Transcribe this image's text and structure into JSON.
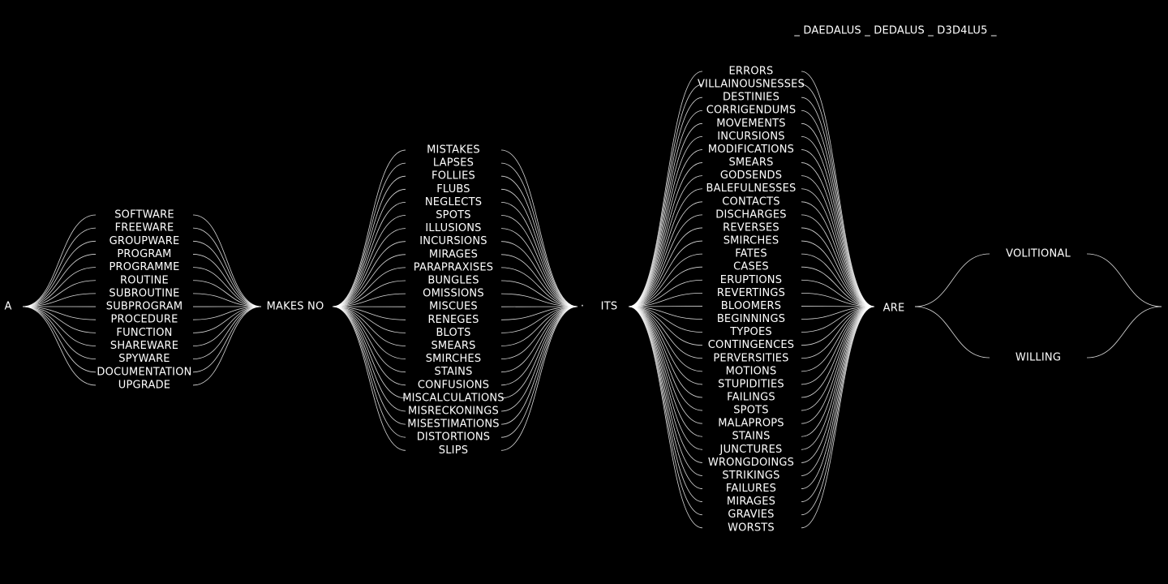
{
  "title": "_ DAEDALUS _ DEDALUS _ D3D4LU5 _",
  "words": {
    "a": "A",
    "makes_no": "MAKES NO",
    "dot": "·",
    "its": "ITS",
    "are": "ARE"
  },
  "groups": {
    "software": [
      "SOFTWARE",
      "FREEWARE",
      "GROUPWARE",
      "PROGRAM",
      "PROGRAMME",
      "ROUTINE",
      "SUBROUTINE",
      "SUBPROGRAM",
      "PROCEDURE",
      "FUNCTION",
      "SHAREWARE",
      "SPYWARE",
      "DOCUMENTATION",
      "UPGRADE"
    ],
    "mistakes": [
      "MISTAKES",
      "LAPSES",
      "FOLLIES",
      "FLUBS",
      "NEGLECTS",
      "SPOTS",
      "ILLUSIONS",
      "INCURSIONS",
      "MIRAGES",
      "PARAPRAXISES",
      "BUNGLES",
      "OMISSIONS",
      "MISCUES",
      "RENEGES",
      "BLOTS",
      "SMEARS",
      "SMIRCHES",
      "STAINS",
      "CONFUSIONS",
      "MISCALCULATIONS",
      "MISRECKONINGS",
      "MISESTIMATIONS",
      "DISTORTIONS",
      "SLIPS"
    ],
    "errors": [
      "ERRORS",
      "VILLAINOUSNESSES",
      "DESTINIES",
      "CORRIGENDUMS",
      "MOVEMENTS",
      "INCURSIONS",
      "MODIFICATIONS",
      "SMEARS",
      "GODSENDS",
      "BALEFULNESSES",
      "CONTACTS",
      "DISCHARGES",
      "REVERSES",
      "SMIRCHES",
      "FATES",
      "CASES",
      "ERUPTIONS",
      "REVERTINGS",
      "BLOOMERS",
      "BEGINNINGS",
      "TYPOES",
      "CONTINGENCES",
      "PERVERSITIES",
      "MOTIONS",
      "STUPIDITIES",
      "FAILINGS",
      "SPOTS",
      "MALAPROPS",
      "STAINS",
      "JUNCTURES",
      "WRONGDOINGS",
      "STRIKINGS",
      "FAILURES",
      "MIRAGES",
      "GRAVIES",
      "WORSTS"
    ],
    "volitional": [
      "VOLITIONAL",
      "WILLING"
    ]
  }
}
